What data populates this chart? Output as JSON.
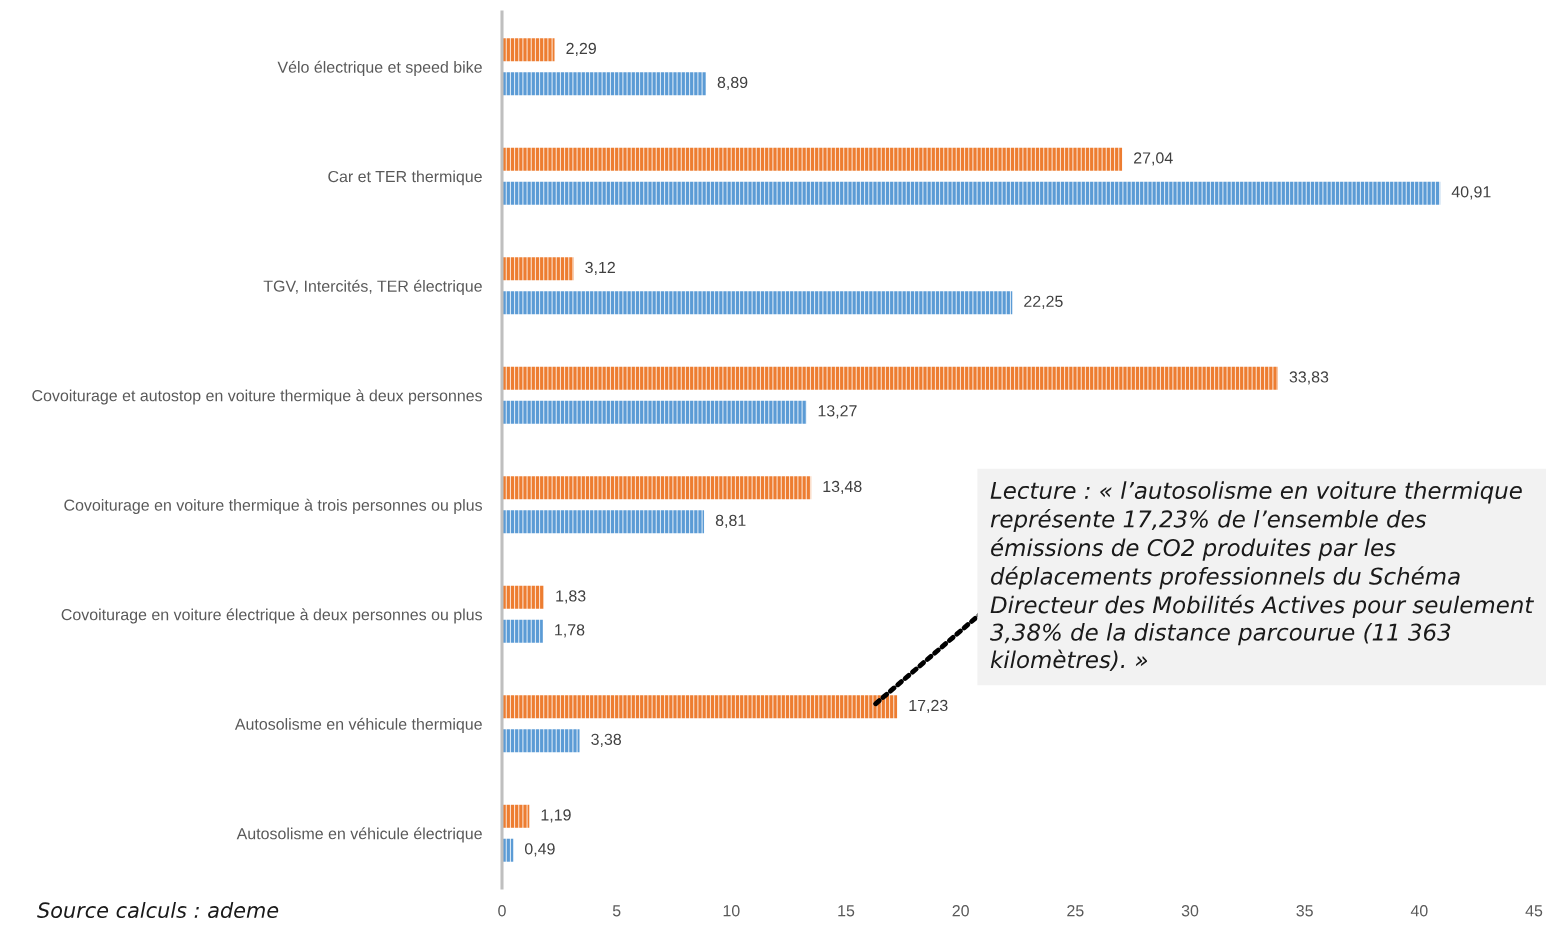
{
  "chart_data": {
    "type": "bar",
    "orientation": "horizontal",
    "categories": [
      "Vélo électrique et speed bike",
      "Car et TER thermique",
      "TGV, Intercités, TER électrique",
      "Covoiturage et autostop en voiture thermique à deux personnes",
      "Covoiturage en voiture thermique à trois personnes ou plus",
      "Covoiturage en voiture électrique à deux personnes ou plus",
      "Autosolisme en véhicule thermique",
      "Autosolisme en véhicule électrique"
    ],
    "series": [
      {
        "color": "#ed7d31",
        "values": [
          2.29,
          27.04,
          3.12,
          33.83,
          13.48,
          1.83,
          17.23,
          1.19
        ],
        "value_labels": [
          "2,29",
          "27,04",
          "3,12",
          "33,83",
          "13,48",
          "1,83",
          "17,23",
          "1,19"
        ]
      },
      {
        "color": "#5b9bd5",
        "values": [
          8.89,
          40.91,
          22.25,
          13.27,
          8.81,
          1.78,
          3.38,
          0.49
        ],
        "value_labels": [
          "8,89",
          "40,91",
          "22,25",
          "13,27",
          "8,81",
          "1,78",
          "3,38",
          "0,49"
        ]
      }
    ],
    "xlim": [
      0,
      45
    ],
    "xticks": [
      0,
      5,
      10,
      15,
      20,
      25,
      30,
      35,
      40,
      45
    ],
    "annotations": [
      "Lecture : « l’autosolisme en voiture thermique représente 17,23% de l’ensemble des émissions de CO2 produites par les déplacements professionnels du Schéma Directeur des Mobilités Actives pour seulement 3,38% de la distance parcourue (11 363 kilomètres). »",
      "Source calculs : ademe"
    ]
  }
}
